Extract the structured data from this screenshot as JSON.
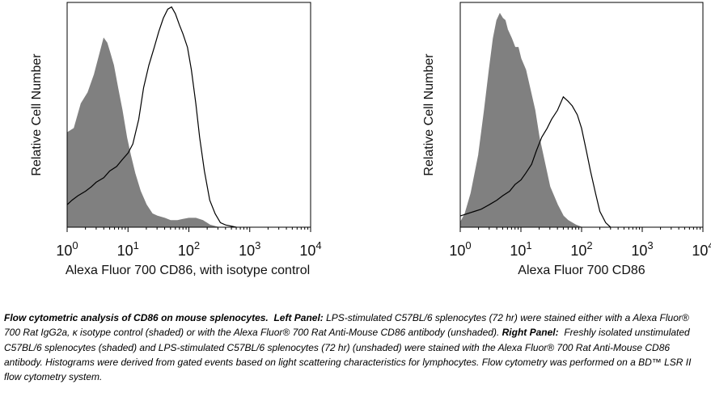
{
  "chart_data": [
    {
      "type": "area",
      "panel": "Left Panel",
      "xlabel": "Alexa Fluor 700 CD86, with isotype control",
      "ylabel": "Relative Cell Number",
      "xscale": "log",
      "xlim": [
        1,
        10000
      ],
      "ylim": [
        0,
        1
      ],
      "xticks": [
        {
          "base": "10",
          "exp": "0"
        },
        {
          "base": "10",
          "exp": "1"
        },
        {
          "base": "10",
          "exp": "2"
        },
        {
          "base": "10",
          "exp": "3"
        },
        {
          "base": "10",
          "exp": "4"
        }
      ],
      "series": [
        {
          "style": "shaded",
          "color": "#808080",
          "x": [
            1,
            1.3,
            1.7,
            2.2,
            2.8,
            3.5,
            4.0,
            4.5,
            5.0,
            5.8,
            6.8,
            8.0,
            9.5,
            11,
            13,
            16,
            20,
            25,
            30,
            40,
            50,
            65,
            80,
            100,
            130,
            170,
            220,
            300
          ],
          "y": [
            0.42,
            0.44,
            0.55,
            0.6,
            0.68,
            0.78,
            0.84,
            0.82,
            0.78,
            0.72,
            0.62,
            0.52,
            0.4,
            0.32,
            0.24,
            0.16,
            0.1,
            0.06,
            0.05,
            0.04,
            0.03,
            0.03,
            0.035,
            0.04,
            0.04,
            0.03,
            0.01,
            0
          ]
        },
        {
          "style": "outline",
          "color": "#000000",
          "x": [
            1,
            1.2,
            1.5,
            2,
            2.5,
            3,
            4,
            5,
            6.5,
            8,
            10,
            12,
            15,
            18,
            22,
            27,
            32,
            38,
            45,
            52,
            60,
            70,
            80,
            95,
            110,
            130,
            150,
            180,
            220,
            270,
            330,
            400,
            600
          ],
          "y": [
            0.1,
            0.12,
            0.14,
            0.16,
            0.18,
            0.2,
            0.22,
            0.25,
            0.27,
            0.3,
            0.33,
            0.37,
            0.48,
            0.62,
            0.72,
            0.8,
            0.87,
            0.93,
            0.97,
            0.98,
            0.95,
            0.9,
            0.86,
            0.8,
            0.7,
            0.55,
            0.4,
            0.25,
            0.12,
            0.06,
            0.02,
            0.01,
            0
          ]
        }
      ]
    },
    {
      "type": "area",
      "panel": "Right Panel",
      "xlabel": "Alexa Fluor 700 CD86",
      "ylabel": "Relative Cell Number",
      "xscale": "log",
      "xlim": [
        1,
        10000
      ],
      "ylim": [
        0,
        1
      ],
      "xticks": [
        {
          "base": "10",
          "exp": "0"
        },
        {
          "base": "10",
          "exp": "1"
        },
        {
          "base": "10",
          "exp": "2"
        },
        {
          "base": "10",
          "exp": "3"
        },
        {
          "base": "10",
          "exp": "4"
        }
      ],
      "series": [
        {
          "style": "shaded",
          "color": "#808080",
          "x": [
            1,
            1.2,
            1.5,
            2,
            2.5,
            3,
            3.5,
            4,
            4.5,
            5,
            5.5,
            6,
            7,
            8,
            9,
            10,
            12,
            14,
            17,
            20,
            25,
            30,
            40,
            50,
            60,
            80,
            100
          ],
          "y": [
            0.02,
            0.06,
            0.15,
            0.32,
            0.52,
            0.7,
            0.84,
            0.92,
            0.95,
            0.93,
            0.92,
            0.88,
            0.84,
            0.8,
            0.8,
            0.75,
            0.7,
            0.62,
            0.52,
            0.4,
            0.28,
            0.18,
            0.1,
            0.05,
            0.03,
            0.01,
            0
          ]
        },
        {
          "style": "outline",
          "color": "#000000",
          "x": [
            1,
            1.3,
            1.7,
            2.2,
            3,
            4,
            5,
            6.5,
            8,
            10,
            12,
            15,
            18,
            22,
            27,
            32,
            40,
            50,
            60,
            70,
            85,
            100,
            120,
            140,
            170,
            200,
            250,
            300
          ],
          "y": [
            0.05,
            0.06,
            0.07,
            0.08,
            0.1,
            0.12,
            0.14,
            0.16,
            0.19,
            0.21,
            0.24,
            0.28,
            0.34,
            0.4,
            0.44,
            0.48,
            0.52,
            0.58,
            0.56,
            0.54,
            0.5,
            0.44,
            0.34,
            0.25,
            0.15,
            0.07,
            0.02,
            0
          ]
        }
      ]
    }
  ],
  "caption": {
    "heading": "Flow cytometric analysis of CD86 on mouse splenocytes.",
    "left_label": "Left Panel:",
    "left_text": "LPS-stimulated C57BL/6 splenocytes (72 hr) were stained either with a Alexa Fluor® 700 Rat IgG2a, κ isotype control (shaded) or with the Alexa Fluor® 700 Rat Anti-Mouse CD86 antibody (unshaded).",
    "right_label": "Right Panel:",
    "right_text": "Freshly isolated unstimulated C57BL/6 splenocytes (shaded) and LPS-stimulated C57BL/6 splenocytes (72 hr) (unshaded) were stained with the Alexa Fluor® 700 Rat Anti-Mouse CD86 antibody.  Histograms were derived from gated events based on light scattering characteristics for lymphocytes.  Flow cytometry was performed on a BD™ LSR II flow cytometry system."
  }
}
